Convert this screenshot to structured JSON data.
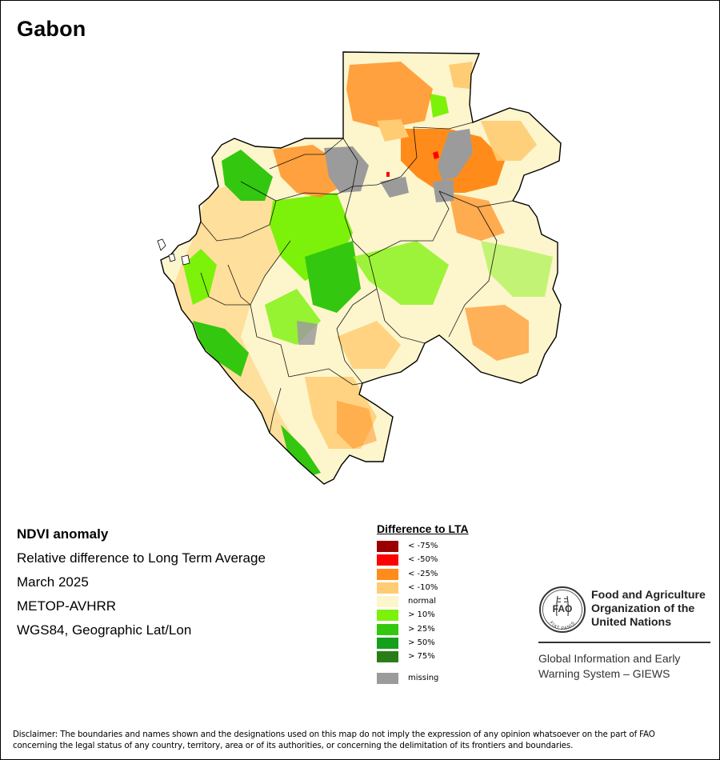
{
  "map": {
    "title": "Gabon",
    "info": {
      "layer": "NDVI anomaly",
      "description": "Relative difference to Long Term Average",
      "period": "March 2025",
      "sensor": "METOP-AVHRR",
      "projection": "WGS84, Geographic Lat/Lon"
    },
    "legend": {
      "title": "Difference to LTA",
      "items": [
        {
          "label": "< -75%",
          "color": "#9b0000"
        },
        {
          "label": "< -50%",
          "color": "#ff0000"
        },
        {
          "label": "< -25%",
          "color": "#ff8c1a"
        },
        {
          "label": "< -10%",
          "color": "#ffcc73"
        },
        {
          "label": "normal",
          "color": "#fdf5cc"
        },
        {
          "label": "> 10%",
          "color": "#7cf20a"
        },
        {
          "label": "> 25%",
          "color": "#34c70f"
        },
        {
          "label": "> 50%",
          "color": "#15a01b"
        },
        {
          "label": "> 75%",
          "color": "#2a7d16"
        },
        {
          "label": "missing",
          "color": "#9b9b9b"
        }
      ]
    }
  },
  "organization": {
    "logo_text": "FAO",
    "logo_motto": "FIAT PANIS",
    "name_lines": [
      "Food and Agriculture",
      "Organization of the",
      "United Nations"
    ],
    "program_lines": [
      "Global Information and Early",
      "Warning System – GIEWS"
    ]
  },
  "disclaimer_lines": [
    "Disclaimer: The boundaries and names shown and the designations used on this map do not imply the expression of any opinion whatsoever on the part of FAO",
    "concerning the legal status of any country, territory, area or of its authorities, or concerning the delimitation of its frontiers and boundaries."
  ]
}
